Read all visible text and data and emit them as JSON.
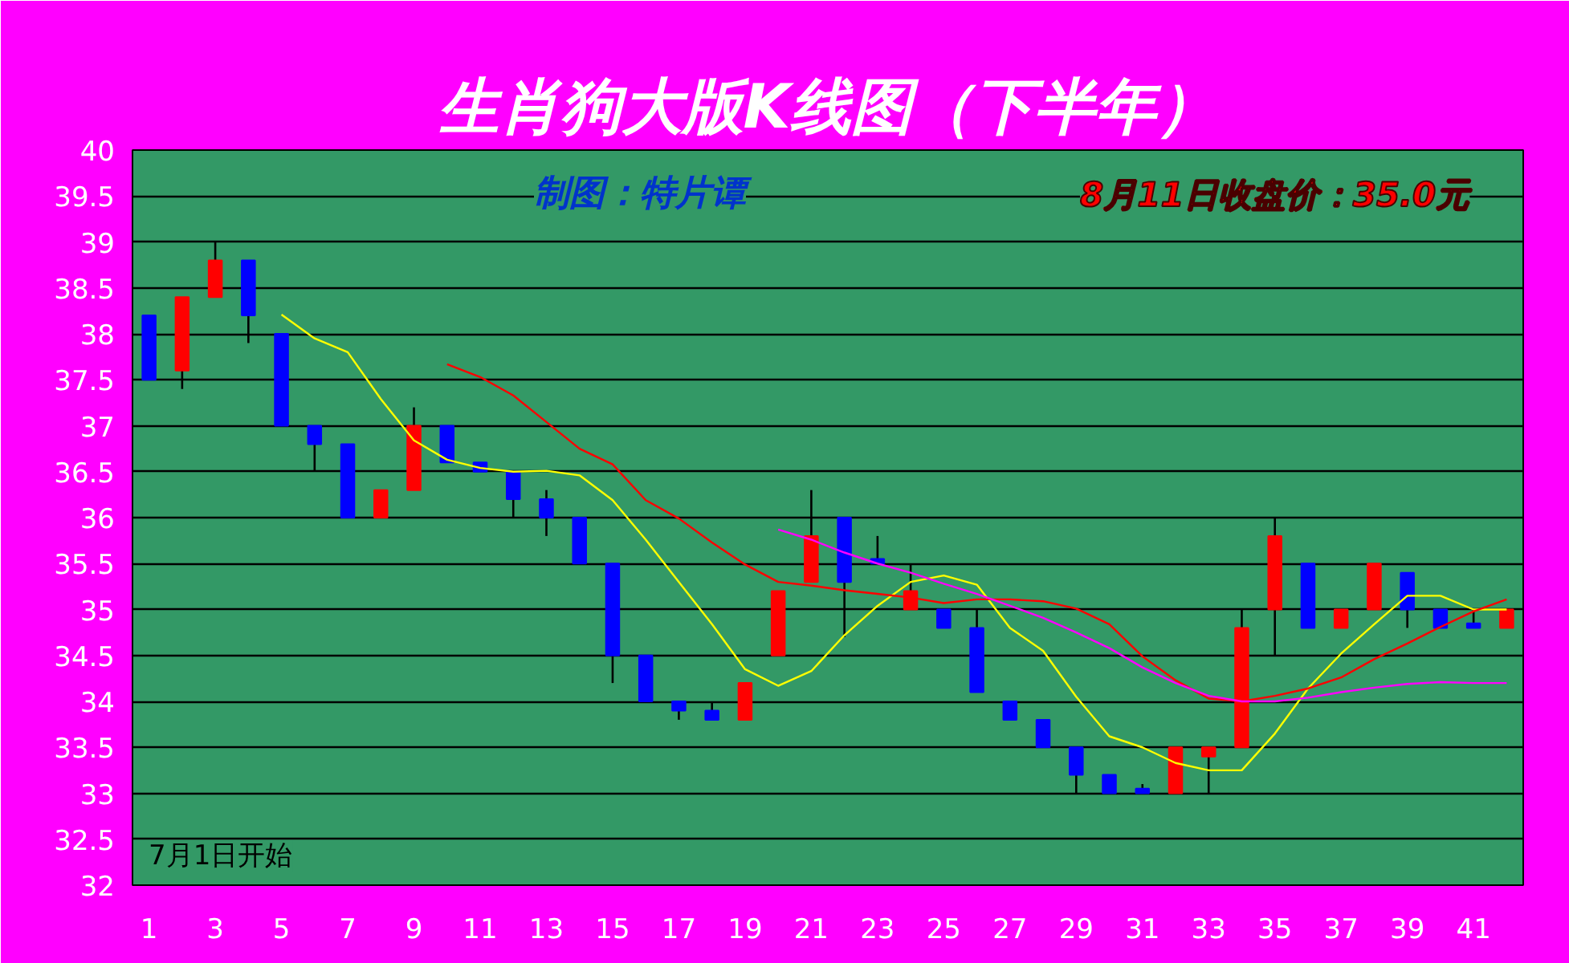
{
  "chart_data": {
    "type": "candlestick",
    "title": "生肖狗大版K线图（下半年）",
    "annotations": [
      "制图：特片谭",
      "8月11日收盘价：35.0元",
      "7月1日开始"
    ],
    "x": [
      1,
      2,
      3,
      4,
      5,
      6,
      7,
      8,
      9,
      10,
      11,
      12,
      13,
      14,
      15,
      16,
      17,
      18,
      19,
      20,
      21,
      22,
      23,
      24,
      25,
      26,
      27,
      28,
      29,
      30,
      31,
      32,
      33,
      34,
      35,
      36,
      37,
      38,
      39,
      40,
      41,
      42
    ],
    "ohlc": [
      [
        38.2,
        38.2,
        37.5,
        37.5
      ],
      [
        37.6,
        38.4,
        37.4,
        38.4
      ],
      [
        38.4,
        39.0,
        38.4,
        38.8
      ],
      [
        38.8,
        38.8,
        37.9,
        38.2
      ],
      [
        38.0,
        38.0,
        37.0,
        37.0
      ],
      [
        37.0,
        37.0,
        36.5,
        36.8
      ],
      [
        36.8,
        36.8,
        36.0,
        36.0
      ],
      [
        36.0,
        36.3,
        36.0,
        36.3
      ],
      [
        36.3,
        37.2,
        36.3,
        37.0
      ],
      [
        37.0,
        37.0,
        36.6,
        36.6
      ],
      [
        36.6,
        36.6,
        36.5,
        36.5
      ],
      [
        36.5,
        36.5,
        36.0,
        36.2
      ],
      [
        36.2,
        36.3,
        35.8,
        36.0
      ],
      [
        36.0,
        36.0,
        35.5,
        35.5
      ],
      [
        35.5,
        35.5,
        34.2,
        34.5
      ],
      [
        34.5,
        34.5,
        34.0,
        34.0
      ],
      [
        34.0,
        34.0,
        33.8,
        33.9
      ],
      [
        33.9,
        34.0,
        33.8,
        33.8
      ],
      [
        33.8,
        34.2,
        33.8,
        34.2
      ],
      [
        34.5,
        35.2,
        34.5,
        35.2
      ],
      [
        35.3,
        36.3,
        35.3,
        35.8
      ],
      [
        36.0,
        36.0,
        34.7,
        35.3
      ],
      [
        35.55,
        35.8,
        35.5,
        35.5
      ],
      [
        35.0,
        35.5,
        35.0,
        35.2
      ],
      [
        35.0,
        35.0,
        34.8,
        34.8
      ],
      [
        34.8,
        35.0,
        34.1,
        34.1
      ],
      [
        34.0,
        34.0,
        33.8,
        33.8
      ],
      [
        33.8,
        33.8,
        33.5,
        33.5
      ],
      [
        33.5,
        33.5,
        33.0,
        33.2
      ],
      [
        33.2,
        33.2,
        33.0,
        33.0
      ],
      [
        33.05,
        33.1,
        33.0,
        33.0
      ],
      [
        33.0,
        33.5,
        33.0,
        33.5
      ],
      [
        33.4,
        33.5,
        33.0,
        33.5
      ],
      [
        33.5,
        35.0,
        33.5,
        34.8
      ],
      [
        35.0,
        36.0,
        34.5,
        35.8
      ],
      [
        35.5,
        35.5,
        34.8,
        34.8
      ],
      [
        34.8,
        35.0,
        34.8,
        35.0
      ],
      [
        35.0,
        35.5,
        35.0,
        35.5
      ],
      [
        35.4,
        35.4,
        34.8,
        35.0
      ],
      [
        35.0,
        35.0,
        34.8,
        34.8
      ],
      [
        34.85,
        35.0,
        34.8,
        34.8
      ],
      [
        34.8,
        35.0,
        34.8,
        35.0
      ]
    ],
    "series": [
      {
        "type": "line",
        "color": "#ffff00",
        "x": [
          5,
          6,
          7,
          8,
          9,
          10,
          11,
          12,
          13,
          14,
          15,
          16,
          17,
          18,
          19,
          20,
          21,
          22,
          23,
          24,
          25,
          26,
          27,
          28,
          29,
          30,
          31,
          32,
          33,
          34,
          35,
          36,
          37,
          38,
          39,
          40,
          41,
          42
        ],
        "values": [
          38.21,
          37.95,
          37.8,
          37.29,
          36.84,
          36.63,
          36.54,
          36.5,
          36.51,
          36.46,
          36.19,
          35.76,
          35.3,
          34.84,
          34.35,
          34.17,
          34.33,
          34.72,
          35.04,
          35.3,
          35.37,
          35.27,
          34.8,
          34.55,
          34.05,
          33.62,
          33.5,
          33.33,
          33.25,
          33.25,
          33.65,
          34.14,
          34.52,
          34.84,
          35.15,
          35.15,
          35.0,
          35.0
        ]
      },
      {
        "type": "line",
        "color": "#ff0000",
        "x": [
          10,
          11,
          12,
          13,
          14,
          15,
          16,
          17,
          18,
          19,
          20,
          21,
          22,
          23,
          24,
          25,
          26,
          27,
          28,
          29,
          30,
          31,
          32,
          33,
          34,
          35,
          36,
          37,
          38,
          39,
          40,
          41,
          42
        ],
        "values": [
          37.67,
          37.53,
          37.33,
          37.04,
          36.75,
          36.58,
          36.19,
          35.99,
          35.73,
          35.49,
          35.3,
          35.26,
          35.21,
          35.17,
          35.13,
          35.07,
          35.11,
          35.11,
          35.09,
          35.01,
          34.84,
          34.49,
          34.23,
          34.03,
          34.0,
          34.06,
          34.14,
          34.26,
          34.46,
          34.63,
          34.81,
          34.98,
          35.11
        ]
      },
      {
        "type": "line",
        "color": "#ff00ff",
        "x": [
          20,
          21,
          22,
          23,
          24,
          25,
          26,
          27,
          28,
          29,
          30,
          31,
          32,
          33,
          34,
          35,
          36,
          37,
          38,
          39,
          40,
          41,
          42
        ],
        "values": [
          35.87,
          35.76,
          35.62,
          35.5,
          35.4,
          35.28,
          35.17,
          35.04,
          34.91,
          34.75,
          34.58,
          34.37,
          34.2,
          34.06,
          34.0,
          34.0,
          34.04,
          34.1,
          34.15,
          34.19,
          34.21,
          34.2,
          34.2
        ]
      }
    ],
    "xlim": [
      0.5,
      42.5
    ],
    "xticks": [
      1,
      3,
      5,
      7,
      9,
      11,
      13,
      15,
      17,
      19,
      21,
      23,
      25,
      27,
      29,
      31,
      33,
      35,
      37,
      39,
      41
    ],
    "ylim": [
      32,
      40
    ],
    "yticks": [
      32,
      32.5,
      33,
      33.5,
      34,
      34.5,
      35,
      35.5,
      36,
      36.5,
      37,
      37.5,
      38,
      38.5,
      39,
      39.5,
      40
    ],
    "grid": "y",
    "marker": "none",
    "line_style": "solid"
  }
}
